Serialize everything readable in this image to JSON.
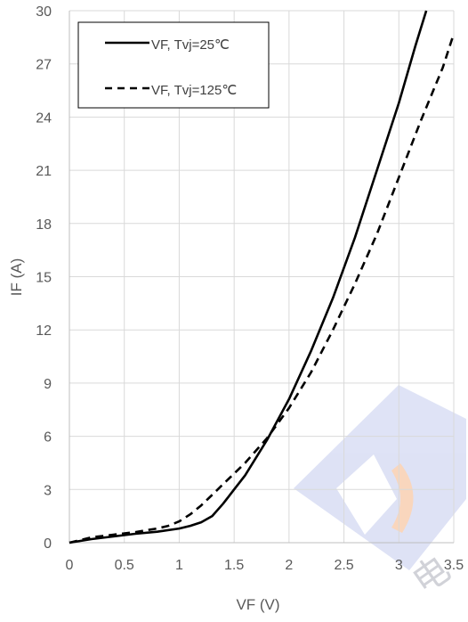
{
  "chart_data": {
    "type": "line",
    "title": "",
    "xlabel": "VF (V)",
    "ylabel": "IF (A)",
    "xlim": [
      0,
      3.5
    ],
    "ylim": [
      0,
      30
    ],
    "x_ticks": [
      0,
      0.5,
      1,
      1.5,
      2,
      2.5,
      3,
      3.5
    ],
    "y_ticks": [
      0,
      3,
      6,
      9,
      12,
      15,
      18,
      21,
      24,
      27,
      30
    ],
    "x_tick_labels": [
      "0",
      "0.5",
      "1",
      "1.5",
      "2",
      "2.5",
      "3",
      "3.5"
    ],
    "y_tick_labels": [
      "0",
      "3",
      "6",
      "9",
      "12",
      "15",
      "18",
      "21",
      "24",
      "27",
      "30"
    ],
    "grid": true,
    "legend_position": "top-left",
    "series": [
      {
        "name": "VF, Tvj=25℃",
        "style": "solid",
        "color": "#000000",
        "x": [
          0,
          0.2,
          0.4,
          0.6,
          0.8,
          1.0,
          1.1,
          1.2,
          1.3,
          1.4,
          1.5,
          1.6,
          1.8,
          2.0,
          2.2,
          2.4,
          2.6,
          2.8,
          3.0,
          3.15,
          3.25
        ],
        "y": [
          0,
          0.2,
          0.35,
          0.5,
          0.62,
          0.8,
          0.95,
          1.15,
          1.5,
          2.2,
          3.0,
          3.8,
          5.8,
          8.1,
          10.8,
          13.8,
          17.2,
          21.0,
          24.8,
          28.0,
          30.0
        ]
      },
      {
        "name": "VF, Tvj=125℃",
        "style": "dashed",
        "color": "#000000",
        "x": [
          0,
          0.2,
          0.4,
          0.6,
          0.8,
          0.9,
          1.0,
          1.1,
          1.2,
          1.3,
          1.4,
          1.6,
          1.8,
          2.0,
          2.2,
          2.4,
          2.6,
          2.8,
          3.0,
          3.2,
          3.4,
          3.5
        ],
        "y": [
          0,
          0.3,
          0.45,
          0.6,
          0.8,
          0.95,
          1.2,
          1.6,
          2.1,
          2.7,
          3.3,
          4.5,
          5.9,
          7.6,
          9.6,
          12.0,
          14.6,
          17.4,
          20.6,
          23.8,
          26.8,
          28.7
        ]
      }
    ]
  },
  "watermark": {
    "text": "电",
    "colors": [
      "#d6dcf3",
      "#f7c9a8",
      "#c9cbd2"
    ]
  }
}
